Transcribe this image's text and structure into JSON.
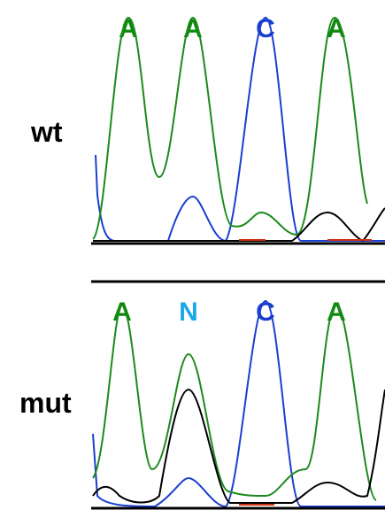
{
  "panels": [
    {
      "label": "wt",
      "bases": [
        "A",
        "A",
        "C",
        "A"
      ]
    },
    {
      "label": "mut",
      "bases": [
        "A",
        "N",
        "C",
        "A"
      ]
    }
  ]
}
